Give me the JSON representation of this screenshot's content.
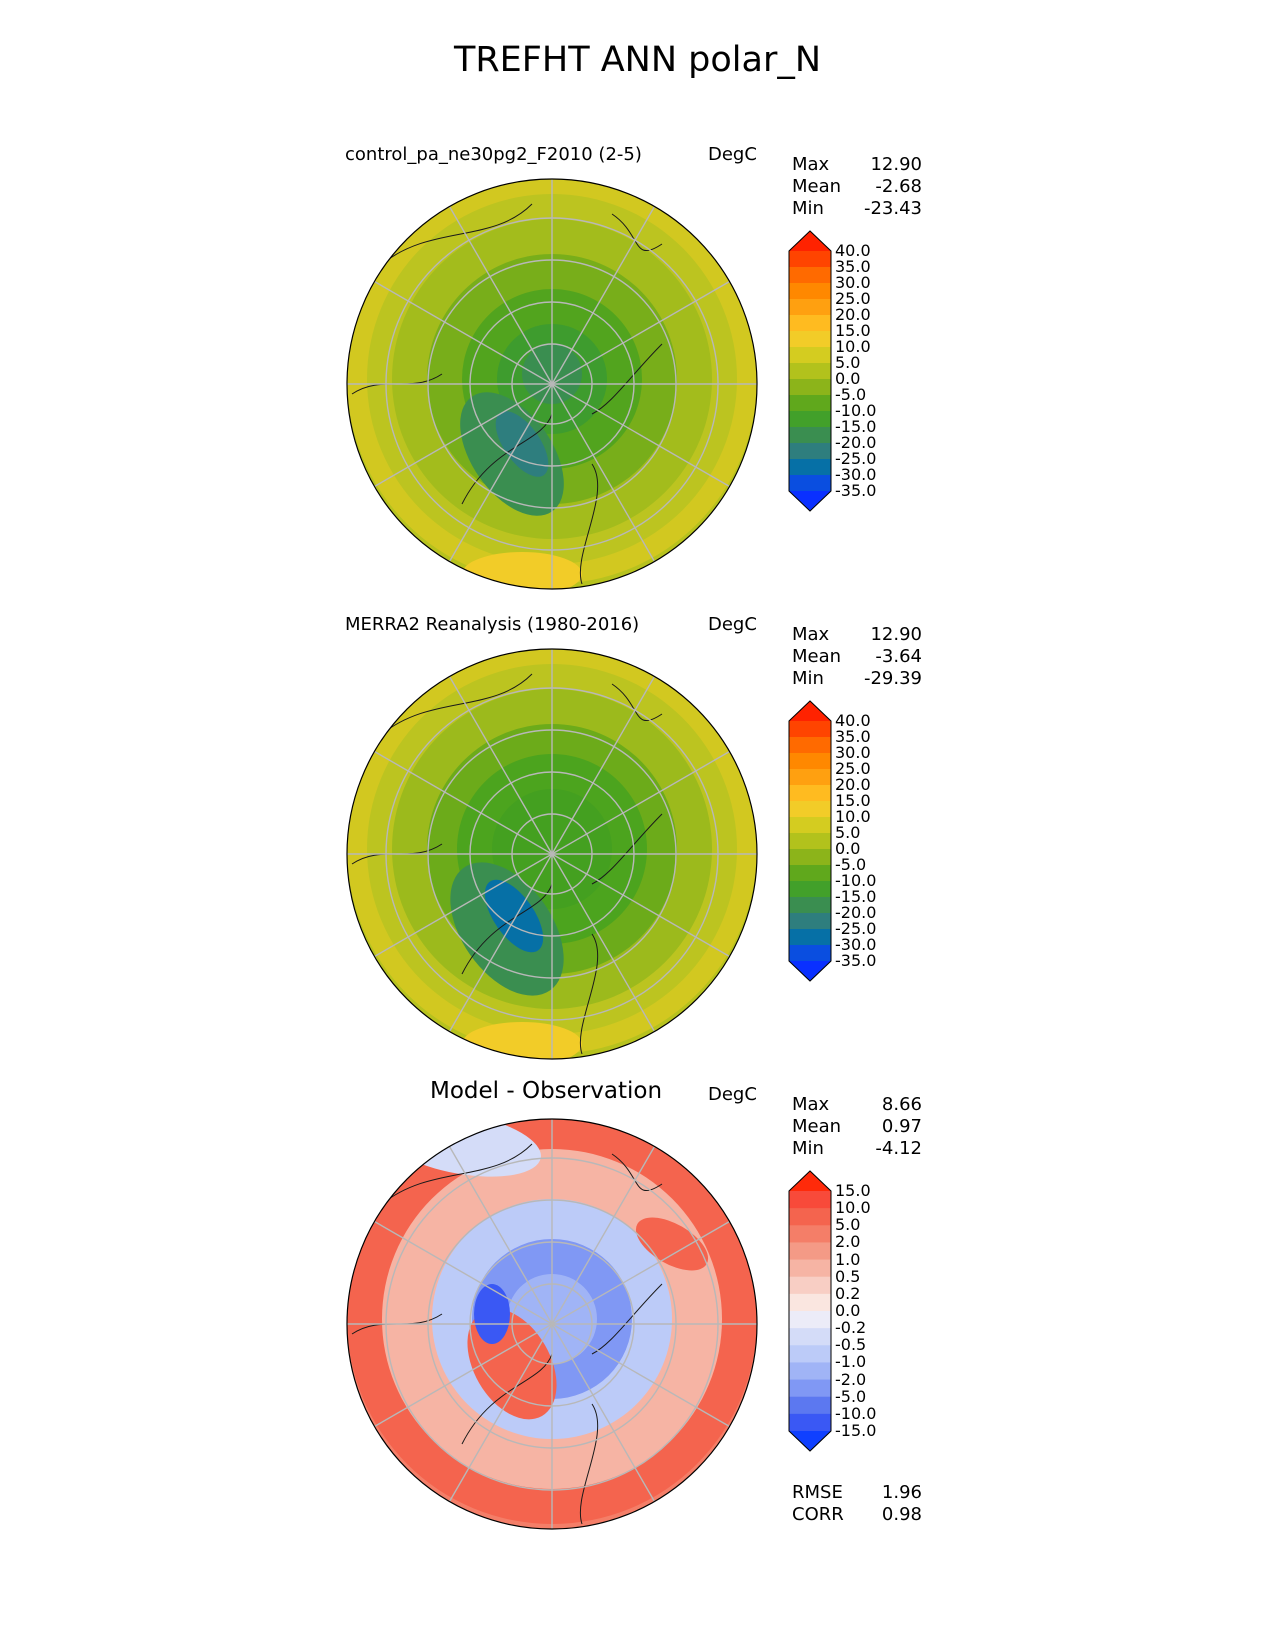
{
  "title": "TREFHT ANN polar_N",
  "panels": [
    {
      "title": "control_pa_ne30pg2_F2010 (2-5)",
      "units": "DegC",
      "stats": [
        {
          "label": "Max",
          "value": "12.90"
        },
        {
          "label": "Mean",
          "value": "-2.68"
        },
        {
          "label": "Min",
          "value": "-23.43"
        }
      ],
      "colorbar": {
        "ticks": [
          "40.0",
          "35.0",
          "30.0",
          "25.0",
          "20.0",
          "15.0",
          "10.0",
          "5.0",
          "0.0",
          "-5.0",
          "-10.0",
          "-15.0",
          "-20.0",
          "-25.0",
          "-30.0",
          "-35.0"
        ],
        "colors": [
          "#ff2200",
          "#ff4400",
          "#ff6a00",
          "#ff8800",
          "#ffa010",
          "#ffbb20",
          "#f2cc28",
          "#d4cc20",
          "#b2c21c",
          "#8cb41a",
          "#60a81c",
          "#42a02a",
          "#3a8e50",
          "#2e7e7e",
          "#0670a6",
          "#0a4ee0",
          "#0a30ff"
        ]
      }
    },
    {
      "title": "MERRA2 Reanalysis (1980-2016)",
      "units": "DegC",
      "stats": [
        {
          "label": "Max",
          "value": "12.90"
        },
        {
          "label": "Mean",
          "value": "-3.64"
        },
        {
          "label": "Min",
          "value": "-29.39"
        }
      ],
      "colorbar": {
        "ticks": [
          "40.0",
          "35.0",
          "30.0",
          "25.0",
          "20.0",
          "15.0",
          "10.0",
          "5.0",
          "0.0",
          "-5.0",
          "-10.0",
          "-15.0",
          "-20.0",
          "-25.0",
          "-30.0",
          "-35.0"
        ],
        "colors": [
          "#ff2200",
          "#ff4400",
          "#ff6a00",
          "#ff8800",
          "#ffa010",
          "#ffbb20",
          "#f2cc28",
          "#d4cc20",
          "#b2c21c",
          "#8cb41a",
          "#60a81c",
          "#42a02a",
          "#3a8e50",
          "#2e7e7e",
          "#0670a6",
          "#0a4ee0",
          "#0a30ff"
        ]
      }
    },
    {
      "title": "Model - Observation",
      "units": "DegC",
      "stats": [
        {
          "label": "Max",
          "value": "8.66"
        },
        {
          "label": "Mean",
          "value": "0.97"
        },
        {
          "label": "Min",
          "value": "-4.12"
        }
      ],
      "extra_stats": [
        {
          "label": "RMSE",
          "value": "1.96"
        },
        {
          "label": "CORR",
          "value": "0.98"
        }
      ],
      "colorbar": {
        "ticks": [
          "15.0",
          "10.0",
          "5.0",
          "2.0",
          "1.0",
          "0.5",
          "0.2",
          "0.0",
          "-0.2",
          "-0.5",
          "-1.0",
          "-2.0",
          "-5.0",
          "-10.0",
          "-15.0"
        ],
        "colors": [
          "#ff2a0a",
          "#f84a3a",
          "#f4644e",
          "#f47e68",
          "#f49a86",
          "#f6b4a4",
          "#f8cec4",
          "#fae6e0",
          "#ececf8",
          "#d4dcf8",
          "#bccbf8",
          "#a0b4f6",
          "#8098f4",
          "#5c78f0",
          "#3a58f4",
          "#1040ff"
        ]
      }
    }
  ]
}
